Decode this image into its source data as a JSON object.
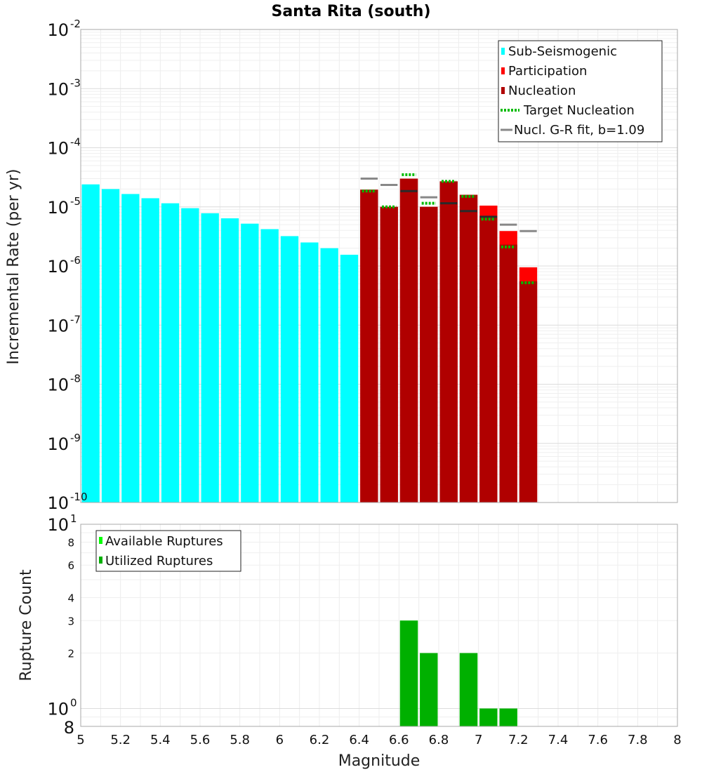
{
  "chart_data": [
    {
      "type": "bar",
      "title": "Santa Rita (south)",
      "xlabel": "",
      "ylabel": "Incremental Rate (per yr)",
      "xlim": [
        5,
        8
      ],
      "ylim": [
        1e-10,
        0.01
      ],
      "yscale": "log",
      "grid": true,
      "legend_position": "top-right",
      "x_ticks": [
        "5",
        "5.2",
        "5.4",
        "5.6",
        "5.8",
        "6",
        "6.2",
        "6.4",
        "6.6",
        "6.8",
        "7",
        "7.2",
        "7.4",
        "7.6",
        "7.8",
        "8"
      ],
      "y_ticks": [
        {
          "base": "10",
          "exp": "-2"
        },
        {
          "base": "10",
          "exp": "-3"
        },
        {
          "base": "10",
          "exp": "-4"
        },
        {
          "base": "10",
          "exp": "-5"
        },
        {
          "base": "10",
          "exp": "-6"
        },
        {
          "base": "10",
          "exp": "-7"
        },
        {
          "base": "10",
          "exp": "-8"
        },
        {
          "base": "10",
          "exp": "-9"
        },
        {
          "base": "10",
          "exp": "-10"
        }
      ],
      "legend": [
        {
          "label": "Sub-Seismogenic",
          "color": "#00ffff",
          "kind": "box"
        },
        {
          "label": "Participation",
          "color": "#ff0000",
          "kind": "box"
        },
        {
          "label": "Nucleation",
          "color": "#b00000",
          "kind": "box"
        },
        {
          "label": "Target Nucleation",
          "color": "#00bb00",
          "kind": "dotted"
        },
        {
          "label": "Nucl. G-R fit, b=1.09",
          "color": "#888888",
          "kind": "line"
        }
      ],
      "bin_width": 0.1,
      "series": [
        {
          "name": "Sub-Seismogenic",
          "color": "#00ffff",
          "x": [
            5.05,
            5.15,
            5.25,
            5.35,
            5.45,
            5.55,
            5.65,
            5.75,
            5.85,
            5.95,
            6.05,
            6.15,
            6.25,
            6.35
          ],
          "values": [
            2.4e-05,
            2e-05,
            1.65e-05,
            1.4e-05,
            1.15e-05,
            9.5e-06,
            7.8e-06,
            6.4e-06,
            5.2e-06,
            4.2e-06,
            3.2e-06,
            2.5e-06,
            2e-06,
            1.55e-06
          ]
        },
        {
          "name": "Participation",
          "color": "#ff0000",
          "x": [
            6.45,
            6.55,
            6.65,
            6.75,
            6.85,
            6.95,
            7.05,
            7.15,
            7.25
          ],
          "values": [
            1.95e-05,
            1e-05,
            3e-05,
            1e-05,
            2.7e-05,
            1.6e-05,
            1.05e-05,
            3.9e-06,
            9.5e-07
          ]
        },
        {
          "name": "Nucleation",
          "color": "#b00000",
          "x": [
            6.45,
            6.55,
            6.65,
            6.75,
            6.85,
            6.95,
            7.05,
            7.15,
            7.25
          ],
          "values": [
            1.95e-05,
            1e-05,
            3e-05,
            1e-05,
            2.7e-05,
            1.6e-05,
            7e-06,
            2.3e-06,
            5.5e-07
          ]
        },
        {
          "name": "Target Nucleation",
          "color": "#00bb00",
          "style": "dotted",
          "x": [
            6.45,
            6.55,
            6.65,
            6.75,
            6.85,
            6.95,
            7.05,
            7.15,
            7.25
          ],
          "values": [
            1.85e-05,
            1e-05,
            3.5e-05,
            1.15e-05,
            2.7e-05,
            1.5e-05,
            6.2e-06,
            2.1e-06,
            5.2e-07
          ]
        },
        {
          "name": "Nucl. G-R fit, b=1.09",
          "color": "#888888",
          "style": "segment",
          "x": [
            6.45,
            6.55,
            6.65,
            6.75,
            6.85,
            6.95,
            7.05,
            7.15,
            7.25
          ],
          "values": [
            3e-05,
            2.35e-05,
            1.85e-05,
            1.45e-05,
            1.15e-05,
            8.5e-06,
            6.8e-06,
            5e-06,
            3.9e-06
          ]
        }
      ]
    },
    {
      "type": "bar",
      "title": "",
      "xlabel": "Magnitude",
      "ylabel": "Rupture Count",
      "xlim": [
        5,
        8
      ],
      "ylim": [
        0.8,
        10
      ],
      "yscale": "log",
      "grid": true,
      "legend_position": "top-left",
      "x_ticks": [
        "5",
        "5.2",
        "5.4",
        "5.6",
        "5.8",
        "6",
        "6.2",
        "6.4",
        "6.6",
        "6.8",
        "7",
        "7.2",
        "7.4",
        "7.6",
        "7.8",
        "8"
      ],
      "y_major_ticks": [
        {
          "base": "10",
          "exp": "1",
          "value": 10
        },
        {
          "base": "10",
          "exp": "0",
          "value": 1
        }
      ],
      "y_minor_ticks": [
        {
          "label": "8",
          "value": 8
        },
        {
          "label": "6",
          "value": 6
        },
        {
          "label": "4",
          "value": 4
        },
        {
          "label": "3",
          "value": 3
        },
        {
          "label": "2",
          "value": 2
        },
        {
          "label": "8",
          "value": 0.8
        }
      ],
      "legend": [
        {
          "label": "Available Ruptures",
          "color": "#00ff00",
          "kind": "box"
        },
        {
          "label": "Utilized Ruptures",
          "color": "#00b000",
          "kind": "box"
        }
      ],
      "bin_width": 0.1,
      "series": [
        {
          "name": "Available Ruptures",
          "color": "#00ff00",
          "x": [
            6.65,
            6.75,
            6.95,
            7.05,
            7.15
          ],
          "values": [
            3,
            2,
            2,
            1,
            1
          ]
        },
        {
          "name": "Utilized Ruptures",
          "color": "#00b000",
          "x": [
            6.65,
            6.75,
            6.95,
            7.05,
            7.15
          ],
          "values": [
            3,
            2,
            2,
            1,
            1
          ]
        }
      ]
    }
  ]
}
